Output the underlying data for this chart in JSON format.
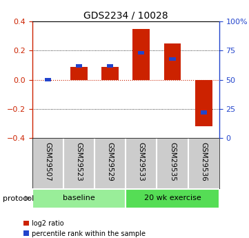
{
  "title": "GDS2234 / 10028",
  "samples": [
    "GSM29507",
    "GSM29523",
    "GSM29529",
    "GSM29533",
    "GSM29535",
    "GSM29536"
  ],
  "log2_ratio": [
    0.0,
    0.09,
    0.09,
    0.35,
    0.25,
    -0.32
  ],
  "pct_raw": [
    50,
    62,
    62,
    73,
    68,
    22
  ],
  "bar_width": 0.55,
  "blue_bar_width": 0.2,
  "ylim": [
    -0.4,
    0.4
  ],
  "y2lim": [
    0,
    100
  ],
  "yticks": [
    -0.4,
    -0.2,
    0.0,
    0.2,
    0.4
  ],
  "y2ticks": [
    0,
    25,
    50,
    75,
    100
  ],
  "red_color": "#cc2200",
  "blue_color": "#2244cc",
  "xlab_bg": "#cccccc",
  "protocol_groups": [
    {
      "label": "baseline",
      "start": 0,
      "end": 3,
      "color": "#99ee99"
    },
    {
      "label": "20 wk exercise",
      "start": 3,
      "end": 6,
      "color": "#55dd55"
    }
  ],
  "legend_items": [
    {
      "color": "#cc2200",
      "label": "log2 ratio"
    },
    {
      "color": "#2244cc",
      "label": "percentile rank within the sample"
    }
  ],
  "protocol_label": "protocol"
}
